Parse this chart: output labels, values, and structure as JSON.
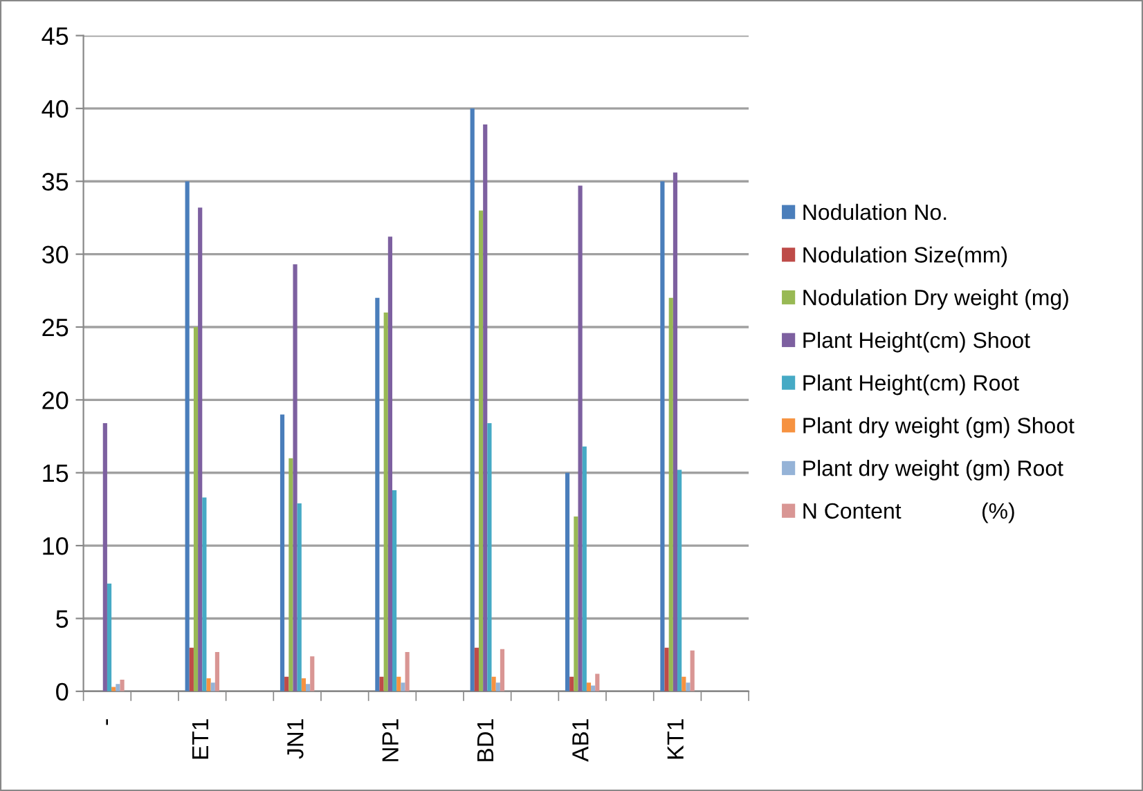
{
  "chart_data": {
    "type": "bar",
    "categories": [
      "-",
      null,
      "ET1",
      null,
      "JN1",
      null,
      "NP1",
      null,
      "BD1",
      null,
      "AB1",
      null,
      "KT1",
      null
    ],
    "series": [
      {
        "name": "Nodulation No.",
        "color": "#4a7ebb",
        "values": [
          null,
          null,
          35,
          null,
          19,
          null,
          27,
          null,
          40,
          null,
          15,
          null,
          35,
          null
        ]
      },
      {
        "name": "Nodulation Size(mm)",
        "color": "#be4b48",
        "values": [
          null,
          null,
          3,
          null,
          1,
          null,
          1,
          null,
          3,
          null,
          1,
          null,
          3,
          null
        ]
      },
      {
        "name": "Nodulation Dry weight (mg)",
        "color": "#98b954",
        "values": [
          null,
          null,
          25,
          null,
          16,
          null,
          26,
          null,
          33,
          null,
          12,
          null,
          27,
          null
        ]
      },
      {
        "name": "Plant Height(cm) Shoot",
        "color": "#7d60a0",
        "values": [
          18.4,
          null,
          33.2,
          null,
          29.3,
          null,
          31.2,
          null,
          38.9,
          null,
          34.7,
          null,
          35.6,
          null
        ]
      },
      {
        "name": "Plant Height(cm) Root",
        "color": "#46aac5",
        "values": [
          7.4,
          null,
          13.3,
          null,
          12.9,
          null,
          13.8,
          null,
          18.4,
          null,
          16.8,
          null,
          15.2,
          null
        ]
      },
      {
        "name": "Plant dry weight (gm) Shoot",
        "color": "#f69240",
        "values": [
          0.3,
          null,
          0.9,
          null,
          0.9,
          null,
          1,
          null,
          1,
          null,
          0.6,
          null,
          1,
          null
        ]
      },
      {
        "name": "Plant dry weight (gm) Root",
        "color": "#95b3d7",
        "values": [
          0.5,
          null,
          0.6,
          null,
          0.5,
          null,
          0.6,
          null,
          0.6,
          null,
          0.4,
          null,
          0.6,
          null
        ]
      },
      {
        "name": "N Content             (%)",
        "color": "#d99694",
        "values": [
          0.8,
          null,
          2.7,
          null,
          2.4,
          null,
          2.7,
          null,
          2.9,
          null,
          1.2,
          null,
          2.8,
          null
        ]
      }
    ],
    "ylim": [
      0,
      45
    ],
    "yticks": [
      0,
      5,
      10,
      15,
      20,
      25,
      30,
      35,
      40,
      45
    ],
    "grid": "y",
    "legend": "right"
  }
}
